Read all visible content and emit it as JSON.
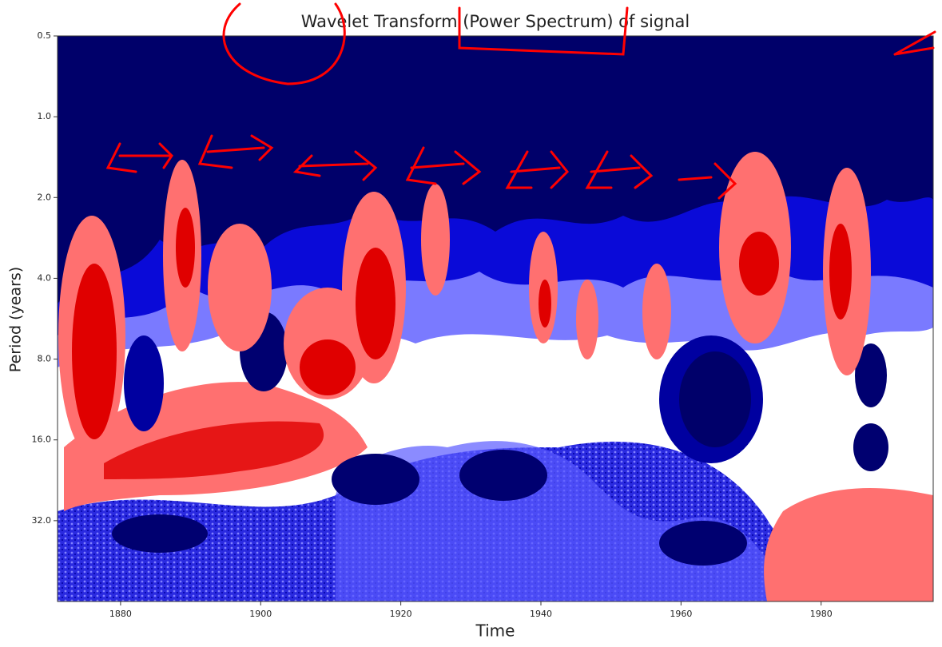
{
  "chart_data": {
    "type": "contour",
    "title": "Wavelet Transform (Power Spectrum) of signal",
    "x_label": "Time",
    "y_label": "Period (years)",
    "xlim": [
      1871,
      1996
    ],
    "xticks": [
      1880,
      1900,
      1920,
      1940,
      1960,
      1980
    ],
    "ylim": [
      0.5,
      64
    ],
    "y_log_base": 2,
    "y_inverted": true,
    "yticks": [
      0.5,
      {
        "value": 1,
        "label": "1.0"
      },
      {
        "value": 2,
        "label": "2.0"
      },
      {
        "value": 4,
        "label": "4.0"
      },
      {
        "value": 8,
        "label": "8.0"
      },
      {
        "value": 16,
        "label": "16.0"
      },
      {
        "value": 32,
        "label": "32.0"
      }
    ]
  }
}
